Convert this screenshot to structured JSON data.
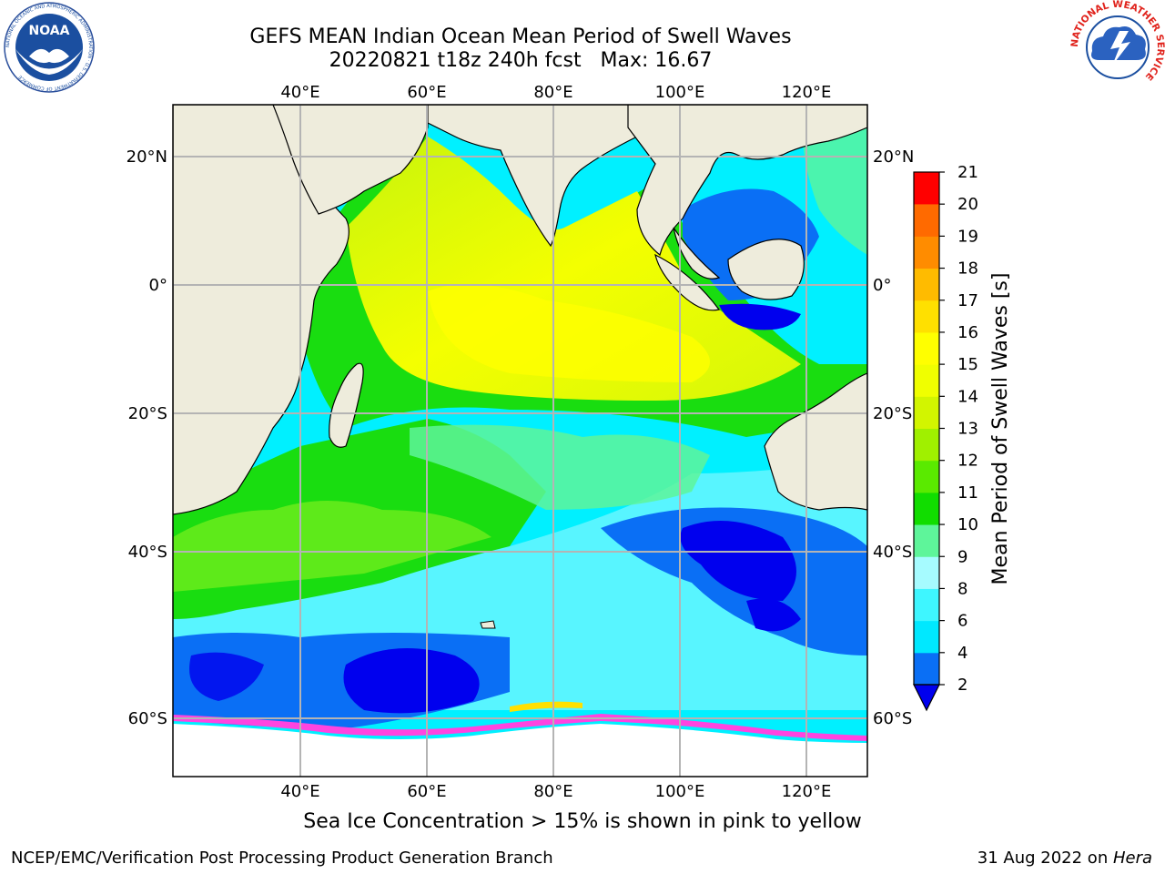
{
  "title": {
    "line1": "GEFS MEAN Indian Ocean Mean Period of Swell Waves",
    "line2": "20220821 t18z 240h fcst   Max: 16.67"
  },
  "logos": {
    "left": {
      "name": "noaa-logo",
      "text": "NOAA",
      "ring_text": "NATIONAL OCEANIC AND ATMOSPHERIC ADMINISTRATION · U.S. DEPARTMENT OF COMMERCE"
    },
    "right": {
      "name": "nws-logo",
      "ring_text": "NATIONAL WEATHER SERVICE"
    }
  },
  "map": {
    "lon_labels": [
      "40°E",
      "60°E",
      "80°E",
      "100°E",
      "120°E"
    ],
    "lat_labels": [
      "20°N",
      "0°",
      "20°S",
      "40°S",
      "60°S"
    ],
    "colors": {
      "land": "#eeecdc",
      "grid": "#b4b4b4",
      "deep_blue": "#0000ee",
      "blue": "#0a6ff5",
      "cyan": "#00f0ff",
      "light_cyan": "#7ef7ff",
      "mint": "#5ef59a",
      "green": "#19dd10",
      "lime": "#7cf020",
      "yellow_green": "#c6f40c",
      "yellow": "#ffff00",
      "ice_pink": "#ff44e0"
    }
  },
  "colorbar": {
    "label": "Mean Period of Swell Waves [s]",
    "ticks": [
      "2",
      "4",
      "6",
      "8",
      "9",
      "10",
      "11",
      "12",
      "13",
      "14",
      "15",
      "16",
      "17",
      "18",
      "19",
      "20",
      "21"
    ],
    "colors": [
      "#0a6ff5",
      "#00e8ff",
      "#3ef6ff",
      "#a6fbff",
      "#5ef59a",
      "#11dd00",
      "#5aea00",
      "#a0f000",
      "#d2f500",
      "#f0ff00",
      "#ffff00",
      "#ffe000",
      "#ffbb00",
      "#ff8c00",
      "#ff6a00",
      "#ff3a00",
      "#ff0000"
    ],
    "under_color": "#0000ee"
  },
  "footer": {
    "note": "Sea Ice Concentration > 15% is shown in pink to yellow",
    "left": "NCEP/EMC/Verification Post Processing Product Generation Branch",
    "right_date": "31 Aug 2022 on ",
    "right_host": "Hera"
  }
}
